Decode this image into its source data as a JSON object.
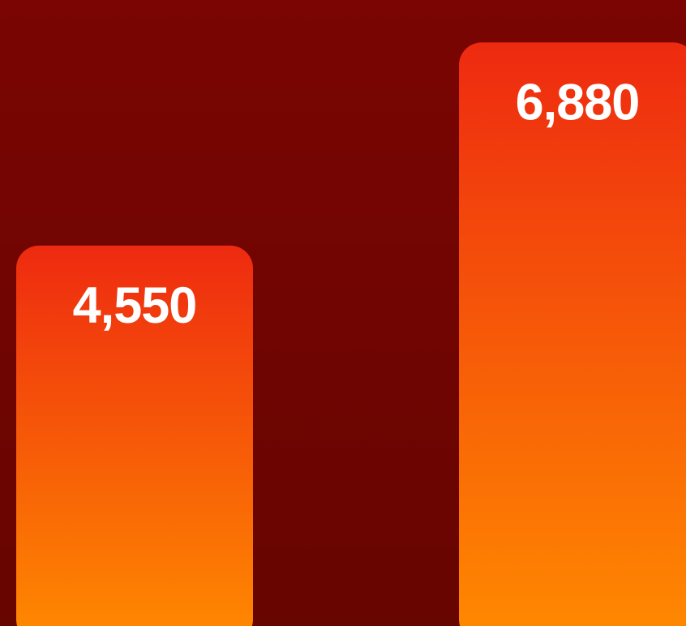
{
  "chart_data": {
    "type": "bar",
    "title": "",
    "xlabel": "",
    "ylabel": "",
    "ylim": [
      0,
      7200
    ],
    "grid": false,
    "legend": "none",
    "categories": [
      "",
      ""
    ],
    "values": [
      4550,
      6880
    ],
    "value_labels": [
      "4,550",
      "6,880"
    ],
    "colors": {
      "background_top": "#7a0502",
      "background_bottom": "#670501",
      "bar_top": "#ee2a10",
      "bar_bottom": "#ff8a00",
      "label": "#ffffff"
    }
  }
}
